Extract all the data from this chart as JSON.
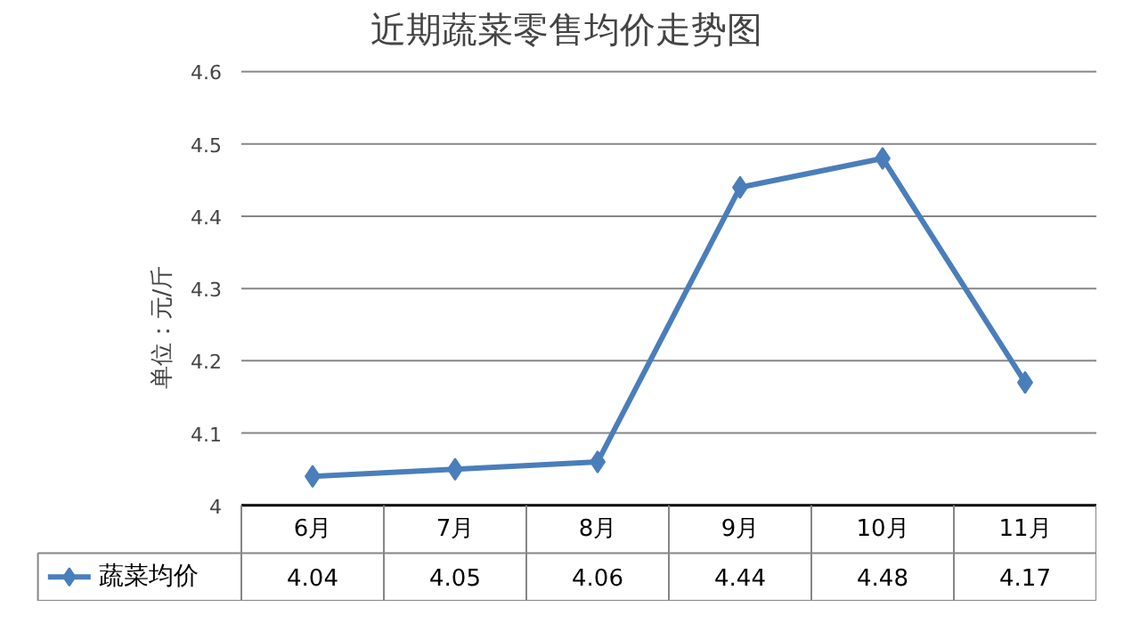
{
  "chart_data": {
    "type": "line",
    "title": "近期蔬菜零售均价走势图",
    "ylabel": "单位：元/斤",
    "categories": [
      "6月",
      "7月",
      "8月",
      "9月",
      "10月",
      "11月"
    ],
    "series": [
      {
        "name": "蔬菜均价",
        "color": "#4a7ebb",
        "values": [
          4.04,
          4.05,
          4.06,
          4.44,
          4.48,
          4.17
        ]
      }
    ],
    "ylim": [
      4,
      4.6
    ],
    "yticks": [
      4,
      4.1,
      4.2,
      4.3,
      4.4,
      4.5,
      4.6
    ],
    "grid": "y",
    "marker": "diamond",
    "line_style": "solid",
    "legend": "bottom",
    "data_labels": true
  }
}
